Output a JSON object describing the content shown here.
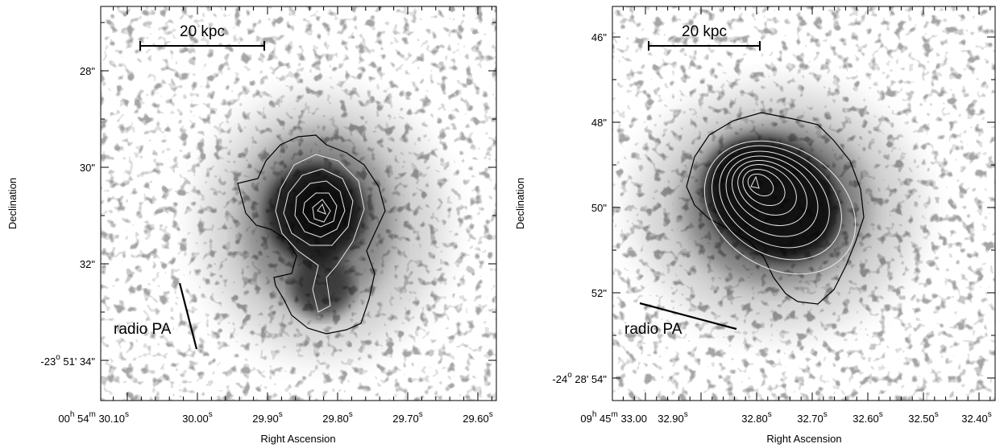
{
  "panels": [
    {
      "id": "left",
      "scale_bar_label": "20 kpc",
      "radio_pa_label": "radio PA",
      "xlabel": "Right Ascension",
      "ylabel": "Declination",
      "dec_ticks": [
        {
          "prefix": "",
          "deg_sup": "",
          "label": "28\""
        },
        {
          "prefix": "",
          "deg_sup": "",
          "label": "30\""
        },
        {
          "prefix": "",
          "deg_sup": "",
          "label": "32\""
        },
        {
          "prefix": "-23",
          "deg_sup": "o",
          "label": " 51' 34\""
        }
      ],
      "ra_ticks": [
        {
          "prefix": "00",
          "h_sup": "h",
          "mid": " 54",
          "m_sup": "m",
          "value": " 30.10",
          "s_sup": "s"
        },
        {
          "value": "30.00",
          "s_sup": "s"
        },
        {
          "value": "29.90",
          "s_sup": "s"
        },
        {
          "value": "29.80",
          "s_sup": "s"
        },
        {
          "value": "29.70",
          "s_sup": "s"
        },
        {
          "value": "29.60",
          "s_sup": "s"
        }
      ]
    },
    {
      "id": "right",
      "scale_bar_label": "20 kpc",
      "radio_pa_label": "radio PA",
      "xlabel": "Right Ascension",
      "ylabel": "Declination",
      "dec_ticks": [
        {
          "prefix": "",
          "deg_sup": "",
          "label": "46\""
        },
        {
          "prefix": "",
          "deg_sup": "",
          "label": "48\""
        },
        {
          "prefix": "",
          "deg_sup": "",
          "label": "50\""
        },
        {
          "prefix": "",
          "deg_sup": "",
          "label": "52\""
        },
        {
          "prefix": "-24",
          "deg_sup": "o",
          "label": " 28' 54\""
        }
      ],
      "ra_ticks": [
        {
          "prefix": "09",
          "h_sup": "h",
          "mid": " 45",
          "m_sup": "m",
          "value": " 33.00",
          "s_sup": "s"
        },
        {
          "value": "32.90",
          "s_sup": "s"
        },
        {
          "value": "32.80",
          "s_sup": "s"
        },
        {
          "value": "32.70",
          "s_sup": "s"
        },
        {
          "value": "32.60",
          "s_sup": "s"
        },
        {
          "value": "32.50",
          "s_sup": "s"
        },
        {
          "value": "32.40",
          "s_sup": "s"
        }
      ]
    }
  ]
}
